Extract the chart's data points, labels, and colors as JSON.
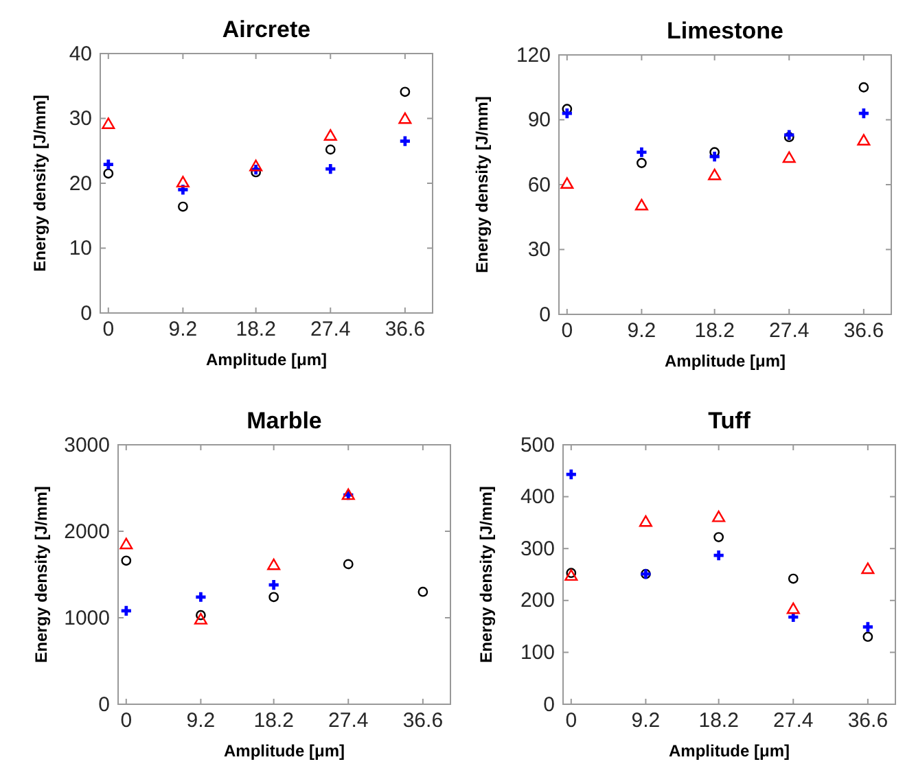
{
  "chart_data": [
    {
      "type": "scatter",
      "title": "Aircrete",
      "xlabel": "Amplitude [μm]",
      "ylabel": "Energy density [J/mm]",
      "x": [
        0,
        9.2,
        18.2,
        27.4,
        36.6
      ],
      "xlim": [
        -1,
        40
      ],
      "xticks": [
        0,
        9.2,
        18.2,
        27.4,
        36.6
      ],
      "ylim": [
        0,
        40
      ],
      "yticks": [
        0,
        10,
        20,
        30,
        40
      ],
      "grid": false,
      "series": [
        {
          "color": "#000000",
          "marker": "circle",
          "values": [
            21.5,
            16.4,
            21.7,
            25.2,
            34.1
          ]
        },
        {
          "color": "#0000ff",
          "marker": "cross",
          "values": [
            22.9,
            19.0,
            22.1,
            22.2,
            26.5
          ]
        },
        {
          "color": "#ff0000",
          "marker": "triangle",
          "values": [
            29.0,
            20.0,
            22.5,
            27.2,
            29.8
          ]
        }
      ]
    },
    {
      "type": "scatter",
      "title": "Limestone",
      "xlabel": "Amplitude [μm]",
      "ylabel": "Energy density [J/mm]",
      "x": [
        0,
        9.2,
        18.2,
        27.4,
        36.6
      ],
      "xlim": [
        -1,
        40
      ],
      "xticks": [
        0,
        9.2,
        18.2,
        27.4,
        36.6
      ],
      "ylim": [
        0,
        120
      ],
      "yticks": [
        0,
        30,
        60,
        90,
        120
      ],
      "grid": false,
      "series": [
        {
          "color": "#000000",
          "marker": "circle",
          "values": [
            95,
            70,
            75,
            82,
            105
          ]
        },
        {
          "color": "#0000ff",
          "marker": "cross",
          "values": [
            93,
            75,
            73,
            83,
            93
          ]
        },
        {
          "color": "#ff0000",
          "marker": "triangle",
          "values": [
            60,
            50,
            64,
            72,
            80
          ]
        }
      ]
    },
    {
      "type": "scatter",
      "title": "Marble",
      "xlabel": "Amplitude [μm]",
      "ylabel": "Energy density [J/mm]",
      "x": [
        0,
        9.2,
        18.2,
        27.4,
        36.6
      ],
      "xlim": [
        -1,
        40
      ],
      "xticks": [
        0,
        9.2,
        18.2,
        27.4,
        36.6
      ],
      "ylim": [
        0,
        3000
      ],
      "yticks": [
        0,
        1000,
        2000,
        3000
      ],
      "grid": false,
      "series": [
        {
          "color": "#000000",
          "marker": "circle",
          "values": [
            1660,
            1030,
            1240,
            1620,
            1300
          ]
        },
        {
          "color": "#0000ff",
          "marker": "cross",
          "values": [
            1080,
            1240,
            1380,
            2420,
            null
          ]
        },
        {
          "color": "#ff0000",
          "marker": "triangle",
          "values": [
            1840,
            970,
            1600,
            2410,
            null
          ]
        }
      ]
    },
    {
      "type": "scatter",
      "title": "Tuff",
      "xlabel": "Amplitude [μm]",
      "ylabel": "Energy density [J/mm]",
      "x": [
        0,
        9.2,
        18.2,
        27.4,
        36.6
      ],
      "xlim": [
        -1,
        40
      ],
      "xticks": [
        0,
        9.2,
        18.2,
        27.4,
        36.6
      ],
      "ylim": [
        0,
        500
      ],
      "yticks": [
        0,
        100,
        200,
        300,
        400,
        500
      ],
      "grid": false,
      "series": [
        {
          "color": "#000000",
          "marker": "circle",
          "values": [
            253,
            251,
            322,
            242,
            130
          ]
        },
        {
          "color": "#0000ff",
          "marker": "cross",
          "values": [
            443,
            251,
            287,
            168,
            149
          ]
        },
        {
          "color": "#ff0000",
          "marker": "triangle",
          "values": [
            246,
            350,
            359,
            182,
            259
          ]
        }
      ]
    }
  ]
}
